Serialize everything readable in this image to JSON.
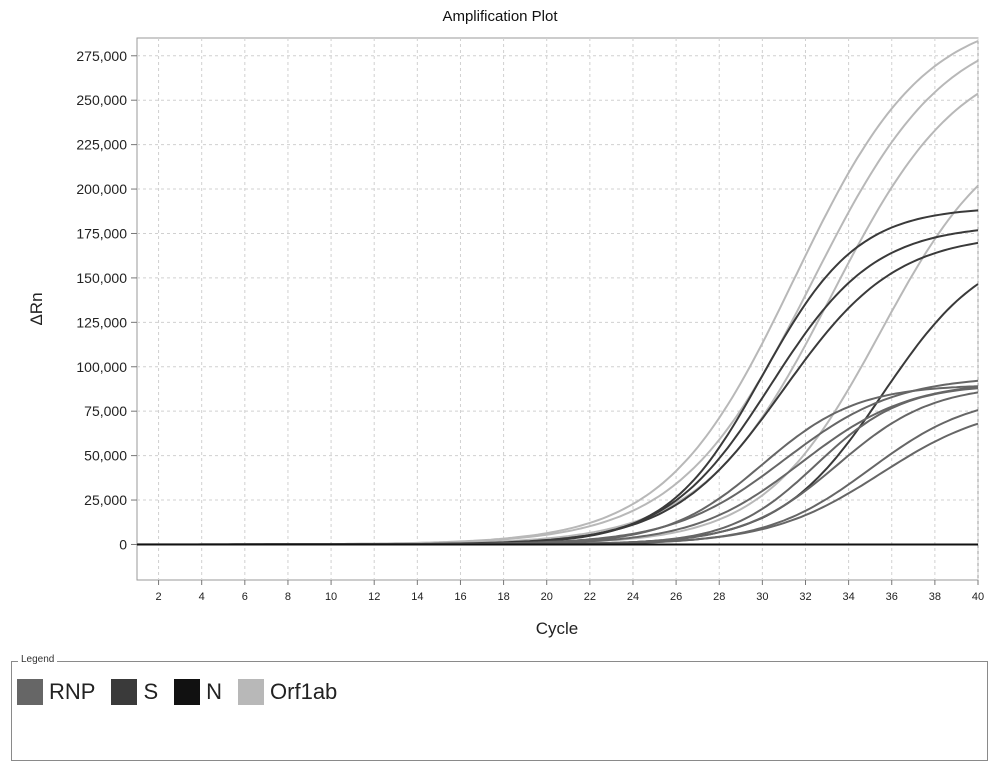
{
  "chart_data": {
    "type": "line",
    "title": "Amplification Plot",
    "xlabel": "Cycle",
    "ylabel": "ΔRn",
    "xlim": [
      1,
      40
    ],
    "ylim": [
      -20000,
      285000
    ],
    "xticks": [
      2,
      4,
      6,
      8,
      10,
      12,
      14,
      16,
      18,
      20,
      22,
      24,
      26,
      28,
      30,
      32,
      34,
      36,
      38,
      40
    ],
    "yticks": [
      0,
      25000,
      50000,
      75000,
      100000,
      125000,
      150000,
      175000,
      200000,
      225000,
      250000,
      275000
    ],
    "ytick_labels": [
      "0",
      "25,000",
      "50,000",
      "75,000",
      "100,000",
      "125,000",
      "150,000",
      "175,000",
      "200,000",
      "225,000",
      "250,000",
      "275,000"
    ],
    "grid": true,
    "curve_model": "sigmoid: y = plateau / (1 + exp(-(cycle - midpoint) / slope))",
    "series": [
      {
        "name": "Orf1ab",
        "color": "#b8b8b8",
        "curves": [
          {
            "plateau": 300000,
            "midpoint": 31.5,
            "slope": 3.0
          },
          {
            "plateau": 295000,
            "midpoint": 32.3,
            "slope": 3.1
          },
          {
            "plateau": 280000,
            "midpoint": 33.2,
            "slope": 3.0
          },
          {
            "plateau": 240000,
            "midpoint": 35.5,
            "slope": 2.7
          }
        ]
      },
      {
        "name": "S",
        "color": "#3a3a3a",
        "curves": [
          {
            "plateau": 190000,
            "midpoint": 30.0,
            "slope": 2.2
          },
          {
            "plateau": 180000,
            "midpoint": 30.4,
            "slope": 2.4
          },
          {
            "plateau": 175000,
            "midpoint": 31.0,
            "slope": 2.6
          },
          {
            "plateau": 170000,
            "midpoint": 35.6,
            "slope": 2.4
          }
        ]
      },
      {
        "name": "RNP",
        "color": "#666666",
        "curves": [
          {
            "plateau": 90000,
            "midpoint": 30.0,
            "slope": 2.2
          },
          {
            "plateau": 95000,
            "midpoint": 31.0,
            "slope": 2.6
          },
          {
            "plateau": 92000,
            "midpoint": 31.8,
            "slope": 2.5
          },
          {
            "plateau": 90000,
            "midpoint": 32.5,
            "slope": 2.0
          },
          {
            "plateau": 90000,
            "midpoint": 33.5,
            "slope": 2.2
          },
          {
            "plateau": 85000,
            "midpoint": 35.0,
            "slope": 2.4
          },
          {
            "plateau": 80000,
            "midpoint": 35.5,
            "slope": 2.6
          }
        ]
      },
      {
        "name": "N",
        "color": "#111111",
        "curves": [
          {
            "plateau": 0,
            "midpoint": 30.0,
            "slope": 2.0
          }
        ]
      }
    ],
    "legend": {
      "caption": "Legend",
      "placement": "bottom"
    }
  }
}
